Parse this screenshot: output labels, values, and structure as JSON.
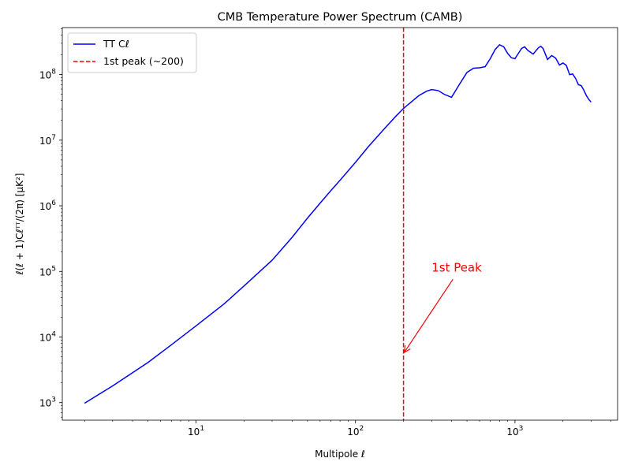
{
  "chart_data": {
    "type": "line",
    "title": "CMB Temperature Power Spectrum (CAMB)",
    "xlabel": "Multipole ℓ",
    "ylabel": "ℓ(ℓ + 1)Cℓᵀᵀ/(2π) [μK²]",
    "xscale": "log",
    "yscale": "log",
    "xlim": [
      1.45,
      4400
    ],
    "ylim": [
      540,
      520000000
    ],
    "grid": false,
    "legend_placement": "upper-left",
    "x_ticks": [
      {
        "value": 10,
        "base": "10",
        "exp": "1"
      },
      {
        "value": 100,
        "base": "10",
        "exp": "2"
      },
      {
        "value": 1000,
        "base": "10",
        "exp": "3"
      }
    ],
    "y_ticks": [
      {
        "value": 1000,
        "base": "10",
        "exp": "3"
      },
      {
        "value": 10000,
        "base": "10",
        "exp": "4"
      },
      {
        "value": 100000,
        "base": "10",
        "exp": "5"
      },
      {
        "value": 1000000,
        "base": "10",
        "exp": "6"
      },
      {
        "value": 10000000,
        "base": "10",
        "exp": "7"
      },
      {
        "value": 100000000,
        "base": "10",
        "exp": "8"
      }
    ],
    "series": [
      {
        "name": "TT Cℓ",
        "color": "#0000ff",
        "style": "solid",
        "x": [
          2,
          3,
          5,
          7,
          10,
          15,
          20,
          30,
          40,
          50,
          60,
          70,
          80,
          100,
          120,
          150,
          180,
          200,
          220,
          250,
          280,
          300,
          330,
          360,
          400,
          450,
          500,
          550,
          600,
          650,
          700,
          750,
          800,
          850,
          900,
          950,
          1000,
          1050,
          1100,
          1150,
          1200,
          1300,
          1400,
          1450,
          1500,
          1600,
          1700,
          1800,
          1900,
          2000,
          2100,
          2200,
          2300,
          2400,
          2500,
          2600,
          2700,
          2800,
          2900,
          3000
        ],
        "y": [
          980,
          1800,
          4100,
          7600,
          14800,
          32000,
          60000,
          148000,
          330000,
          650000,
          1100000,
          1700000,
          2450000,
          4600000,
          7900000,
          14500000,
          23500000,
          30500000,
          37000000,
          48000000,
          56000000,
          59000000,
          57000000,
          50000000,
          45000000,
          72000000,
          108000000,
          125000000,
          127000000,
          132000000,
          175000000,
          240000000,
          285000000,
          265000000,
          210000000,
          180000000,
          175000000,
          210000000,
          250000000,
          265000000,
          235000000,
          205000000,
          255000000,
          270000000,
          250000000,
          170000000,
          195000000,
          178000000,
          140000000,
          150000000,
          138000000,
          100000000,
          102000000,
          87000000,
          70000000,
          68000000,
          58000000,
          48000000,
          42000000,
          38000000
        ]
      },
      {
        "name": "1st peak (~200)",
        "color": "#ff0000",
        "style": "dashed",
        "x_value": 200
      }
    ],
    "annotations": [
      {
        "text": "1st Peak",
        "color": "#ff0000",
        "text_x": 300,
        "text_y": 100000,
        "arrow_to_x": 200,
        "arrow_to_y": 6000
      }
    ]
  }
}
